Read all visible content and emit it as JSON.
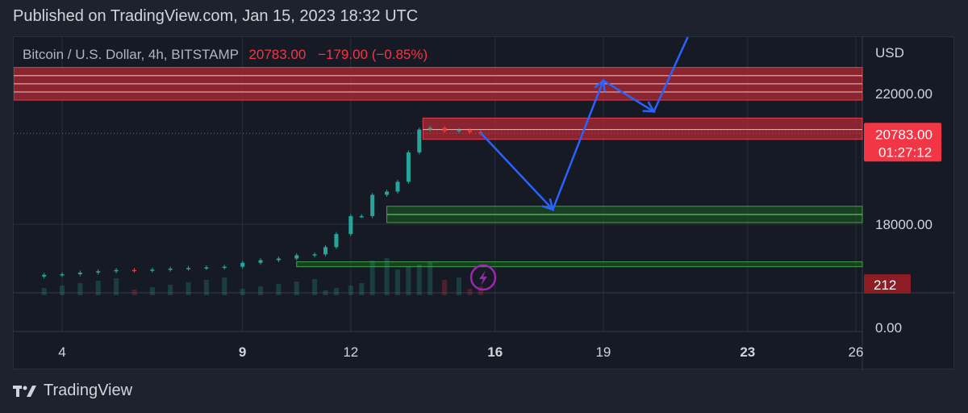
{
  "header": {
    "published": "Published on TradingView.com, Jan 15, 2023 18:32 UTC"
  },
  "legend": {
    "symbol": "Bitcoin / U.S. Dollar, 4h, BITSTAMP",
    "last": "20783.00",
    "change": "−179.00 (−0.85%)"
  },
  "footer": {
    "brand": "TradingView"
  },
  "colors": {
    "background": "#161a25",
    "grid": "#2a2e39",
    "up": "#26a69a",
    "down": "#f23645",
    "arrow": "#2962ff",
    "resistance_zone": "#b22833",
    "support_zone": "#1b5e20",
    "lightning": "#9c27b0"
  },
  "chart_data": {
    "type": "candlestick",
    "symbol": "Bitcoin / U.S. Dollar",
    "interval": "4h",
    "exchange": "BITSTAMP",
    "currency_label": "USD",
    "y_ticks": [
      "22000.00",
      "18000.00"
    ],
    "x_ticks": [
      {
        "day": 4,
        "label": "4"
      },
      {
        "day": 9,
        "label": "9"
      },
      {
        "day": 12,
        "label": "12"
      },
      {
        "day": 16,
        "label": "16"
      },
      {
        "day": 19,
        "label": "19"
      },
      {
        "day": 23,
        "label": "23"
      },
      {
        "day": 26,
        "label": "26"
      }
    ],
    "price_badge": {
      "value": "20783.00",
      "countdown": "01:27:12"
    },
    "volume_badge": {
      "value": "212"
    },
    "volume_axis_ticks": [
      "0.00"
    ],
    "zones": [
      {
        "kind": "resistance",
        "from": 21800,
        "to": 22800,
        "lines": [
          22050,
          22300,
          22550
        ]
      },
      {
        "kind": "resistance",
        "from": 20600,
        "to": 21250,
        "lines": [
          20900
        ]
      },
      {
        "kind": "support",
        "from": 18050,
        "to": 18550,
        "lines": [
          18300
        ]
      },
      {
        "kind": "support",
        "from": 16700,
        "to": 16850,
        "lines": []
      }
    ],
    "projection_path": [
      {
        "day": 15.6,
        "price": 20800
      },
      {
        "day": 17.6,
        "price": 18450
      },
      {
        "day": 19.0,
        "price": 22400
      },
      {
        "day": 20.4,
        "price": 21450
      },
      {
        "day": 21.7,
        "price": 24600
      }
    ],
    "price_series": [
      {
        "day": 3.0,
        "price": 16400
      },
      {
        "day": 3.5,
        "price": 16450
      },
      {
        "day": 4.0,
        "price": 16470
      },
      {
        "day": 4.5,
        "price": 16520
      },
      {
        "day": 5.0,
        "price": 16560
      },
      {
        "day": 5.5,
        "price": 16600
      },
      {
        "day": 6.0,
        "price": 16580
      },
      {
        "day": 6.5,
        "price": 16610
      },
      {
        "day": 7.0,
        "price": 16640
      },
      {
        "day": 7.5,
        "price": 16660
      },
      {
        "day": 8.0,
        "price": 16680
      },
      {
        "day": 8.5,
        "price": 16700
      },
      {
        "day": 9.0,
        "price": 16820
      },
      {
        "day": 9.5,
        "price": 16900
      },
      {
        "day": 10.0,
        "price": 16950
      },
      {
        "day": 10.5,
        "price": 17050
      },
      {
        "day": 11.0,
        "price": 17080
      },
      {
        "day": 11.3,
        "price": 17300
      },
      {
        "day": 11.6,
        "price": 17700
      },
      {
        "day": 12.0,
        "price": 18250
      },
      {
        "day": 12.3,
        "price": 18250
      },
      {
        "day": 12.6,
        "price": 18900
      },
      {
        "day": 13.0,
        "price": 19000
      },
      {
        "day": 13.3,
        "price": 19300
      },
      {
        "day": 13.6,
        "price": 20200
      },
      {
        "day": 13.9,
        "price": 20900
      },
      {
        "day": 14.2,
        "price": 20950
      },
      {
        "day": 14.6,
        "price": 20850
      },
      {
        "day": 15.0,
        "price": 20880
      },
      {
        "day": 15.3,
        "price": 20820
      },
      {
        "day": 15.6,
        "price": 20783
      }
    ]
  }
}
